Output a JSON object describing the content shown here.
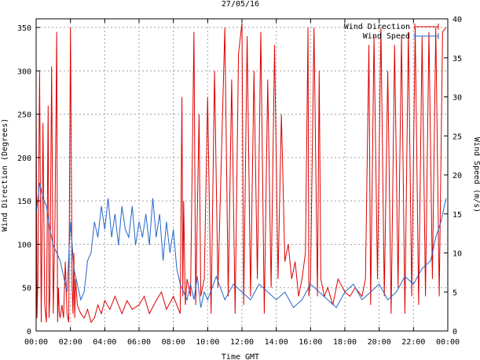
{
  "chart_data": {
    "type": "line",
    "title": "27/05/16",
    "xlabel": "Time GMT",
    "ylabel_left": "Wind Direction (Degrees)",
    "ylabel_right": "Wind Speed (m/s)",
    "x_unit": "hours GMT",
    "xlim": [
      0,
      24
    ],
    "ylim_left": [
      0,
      360
    ],
    "ylim_right": [
      0,
      40
    ],
    "x_ticks": [
      "00:00",
      "02:00",
      "04:00",
      "06:00",
      "08:00",
      "10:00",
      "12:00",
      "14:00",
      "16:00",
      "18:00",
      "20:00",
      "22:00",
      "00:00"
    ],
    "y_ticks_left": [
      "0",
      "50",
      "100",
      "150",
      "200",
      "250",
      "300",
      "350"
    ],
    "y_ticks_right": [
      "0",
      "5",
      "10",
      "15",
      "20",
      "25",
      "30",
      "35",
      "40"
    ],
    "grid": true,
    "legend_position": "top-right",
    "series": [
      {
        "name": "Wind Direction",
        "axis": "left",
        "color": "#dd0000",
        "x": [
          0,
          0.05,
          0.1,
          0.2,
          0.3,
          0.4,
          0.5,
          0.6,
          0.7,
          0.75,
          0.8,
          0.9,
          1.0,
          1.1,
          1.2,
          1.25,
          1.3,
          1.35,
          1.4,
          1.5,
          1.6,
          1.7,
          1.8,
          1.9,
          2.0,
          2.1,
          2.15,
          2.2,
          2.25,
          2.3,
          2.4,
          2.5,
          2.6,
          2.8,
          3.0,
          3.2,
          3.4,
          3.6,
          3.8,
          4.0,
          4.3,
          4.6,
          5.0,
          5.3,
          5.6,
          6.0,
          6.3,
          6.6,
          7.0,
          7.3,
          7.6,
          8.0,
          8.2,
          8.4,
          8.5,
          8.55,
          8.6,
          8.7,
          8.8,
          9.0,
          9.2,
          9.3,
          9.5,
          9.6,
          9.8,
          10.0,
          10.2,
          10.4,
          10.6,
          10.8,
          11.0,
          11.2,
          11.4,
          11.6,
          11.8,
          12.0,
          12.1,
          12.3,
          12.5,
          12.7,
          12.9,
          13.1,
          13.3,
          13.5,
          13.7,
          13.9,
          14.1,
          14.3,
          14.5,
          14.7,
          14.9,
          15.1,
          15.3,
          15.5,
          15.7,
          15.85,
          15.9,
          16.0,
          16.2,
          16.4,
          16.5,
          16.6,
          16.8,
          17.0,
          17.3,
          17.6,
          18.0,
          18.3,
          18.6,
          19.0,
          19.2,
          19.4,
          19.5,
          19.7,
          19.9,
          20.1,
          20.3,
          20.5,
          20.7,
          20.9,
          21.1,
          21.3,
          21.5,
          21.7,
          21.9,
          22.1,
          22.3,
          22.5,
          22.7,
          22.9,
          23.1,
          23.3,
          23.5,
          23.7,
          23.9
        ],
        "values": [
          260,
          15,
          60,
          300,
          10,
          240,
          30,
          10,
          260,
          15,
          40,
          305,
          20,
          130,
          345,
          10,
          50,
          20,
          15,
          30,
          15,
          80,
          20,
          10,
          350,
          50,
          20,
          90,
          15,
          60,
          30,
          25,
          20,
          15,
          25,
          10,
          15,
          30,
          20,
          35,
          25,
          40,
          20,
          35,
          25,
          30,
          40,
          20,
          35,
          45,
          25,
          40,
          30,
          20,
          270,
          40,
          150,
          30,
          60,
          40,
          345,
          30,
          250,
          40,
          60,
          270,
          20,
          300,
          50,
          200,
          350,
          40,
          290,
          20,
          320,
          355,
          30,
          340,
          40,
          300,
          60,
          345,
          20,
          290,
          50,
          330,
          60,
          250,
          80,
          100,
          60,
          80,
          40,
          60,
          90,
          350,
          40,
          60,
          350,
          40,
          300,
          60,
          40,
          50,
          30,
          60,
          45,
          40,
          50,
          40,
          60,
          330,
          30,
          340,
          60,
          350,
          40,
          300,
          20,
          330,
          50,
          340,
          20,
          345,
          40,
          350,
          30,
          340,
          40,
          345,
          60,
          350,
          40,
          345,
          350
        ],
        "note_values": "Degrees; values read approximately from the plotted trace"
      },
      {
        "name": "Wind Speed",
        "axis": "right",
        "color": "#2266cc",
        "x": [
          0,
          0.2,
          0.4,
          0.6,
          0.8,
          1.0,
          1.2,
          1.4,
          1.6,
          1.8,
          2.0,
          2.2,
          2.4,
          2.6,
          2.8,
          3.0,
          3.2,
          3.4,
          3.6,
          3.8,
          4.0,
          4.2,
          4.4,
          4.6,
          4.8,
          5.0,
          5.2,
          5.4,
          5.6,
          5.8,
          6.0,
          6.2,
          6.4,
          6.6,
          6.8,
          7.0,
          7.2,
          7.4,
          7.6,
          7.8,
          8.0,
          8.2,
          8.4,
          8.6,
          8.8,
          9.0,
          9.2,
          9.4,
          9.6,
          9.8,
          10.0,
          10.5,
          11.0,
          11.5,
          12.0,
          12.5,
          13.0,
          13.5,
          14.0,
          14.5,
          15.0,
          15.5,
          16.0,
          16.5,
          17.0,
          17.5,
          18.0,
          18.5,
          19.0,
          19.5,
          20.0,
          20.5,
          21.0,
          21.5,
          22.0,
          22.5,
          23.0,
          23.3,
          23.6,
          23.9
        ],
        "values": [
          15,
          19,
          17,
          16,
          13,
          11,
          10,
          9,
          7,
          5,
          14,
          8,
          6,
          4,
          5,
          9,
          10,
          14,
          12,
          16,
          13,
          17,
          12,
          15,
          11,
          16,
          13,
          12,
          16,
          11,
          14,
          12,
          15,
          11,
          17,
          12,
          15,
          9,
          14,
          10,
          13,
          8,
          6,
          5,
          4,
          6,
          4,
          7,
          3,
          5,
          4,
          7,
          4,
          6,
          5,
          4,
          6,
          5,
          4,
          5,
          3,
          4,
          6,
          5,
          4,
          3,
          5,
          6,
          4,
          5,
          6,
          4,
          5,
          7,
          6,
          8,
          9,
          12,
          14,
          17
        ],
        "note_values": "m/s; values read approximately from the plotted trace"
      }
    ]
  },
  "colors": {
    "direction_line": "#dd0000",
    "speed_line": "#2266cc",
    "grid": "#a0a0a0",
    "axis": "#000000"
  }
}
